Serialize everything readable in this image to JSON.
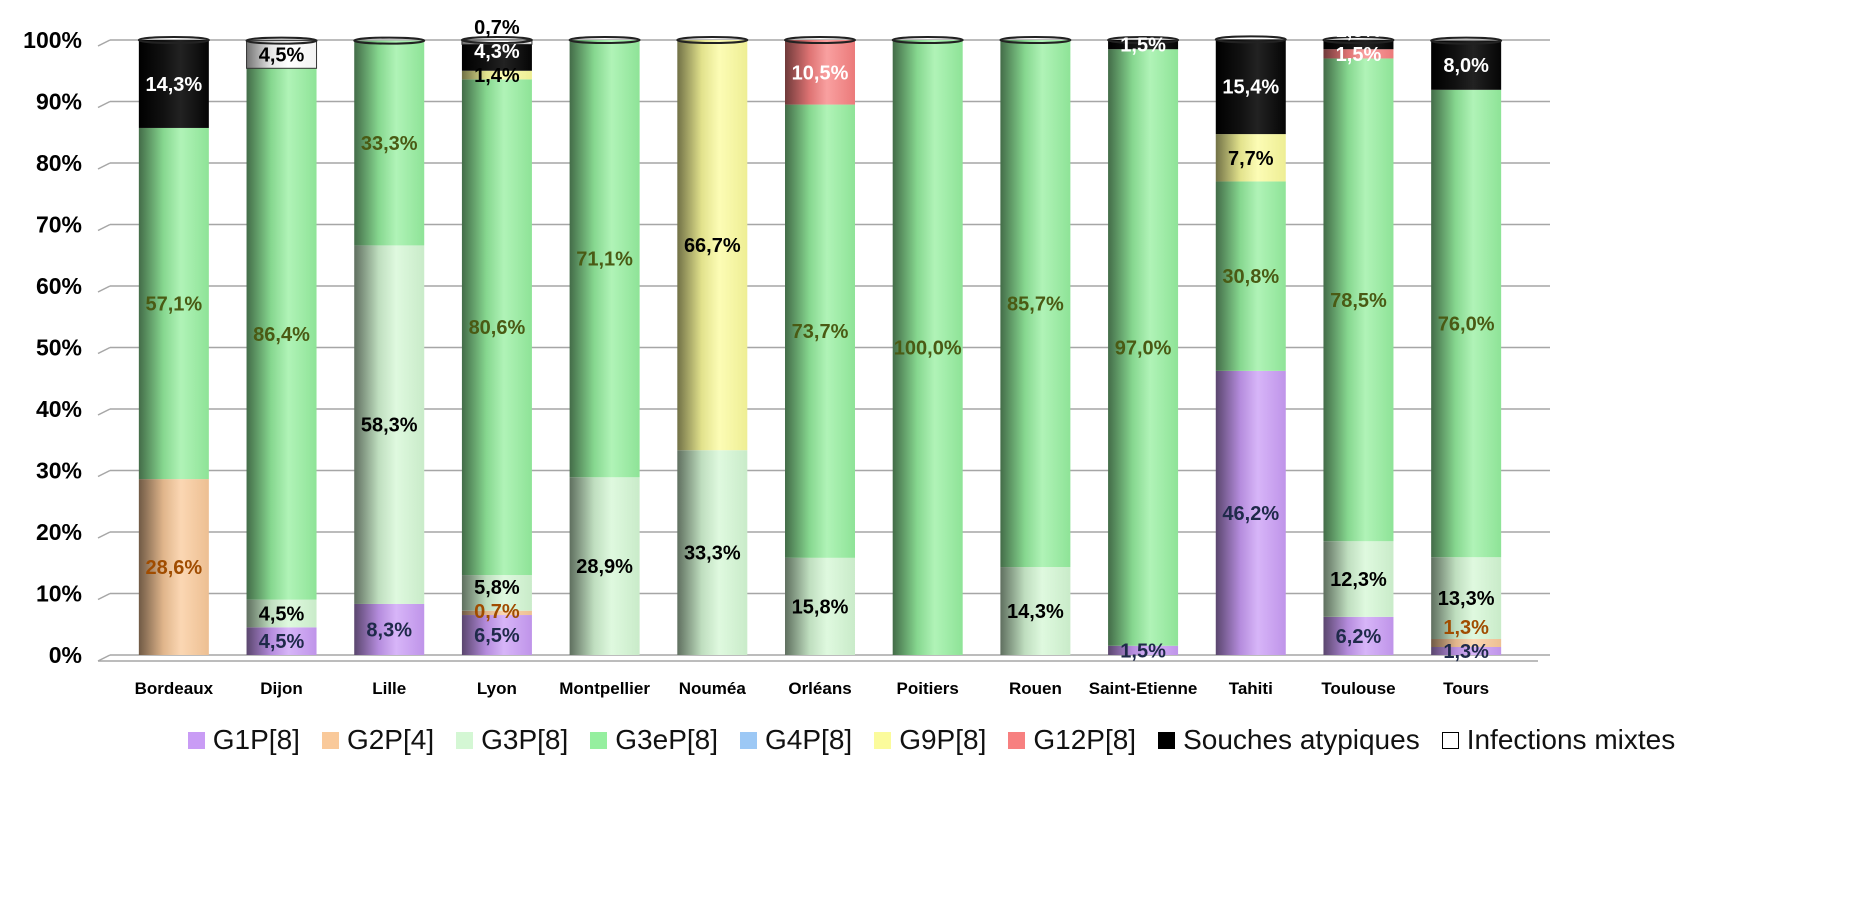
{
  "chart_data": {
    "type": "bar",
    "stacked": true,
    "percent": true,
    "ylim": [
      0,
      100
    ],
    "yticks": [
      "0%",
      "10%",
      "20%",
      "30%",
      "40%",
      "50%",
      "60%",
      "70%",
      "80%",
      "90%",
      "100%"
    ],
    "grid": true,
    "legend_position": "bottom",
    "categories": [
      "Bordeaux",
      "Dijon",
      "Lille",
      "Lyon",
      "Montpellier",
      "Nouméa",
      "Orléans",
      "Poitiers",
      "Rouen",
      "Saint-Etienne",
      "Tahiti",
      "Toulouse",
      "Tours"
    ],
    "series": [
      {
        "name": "G1P[8]",
        "color": "#c99cf5",
        "label_color": "#1f2a4a",
        "values": [
          0,
          4.5,
          8.3,
          6.5,
          0,
          0,
          0,
          0,
          0,
          1.5,
          46.2,
          6.2,
          1.3
        ]
      },
      {
        "name": "G2P[4]",
        "color": "#f9c99a",
        "label_color": "#a04c00",
        "values": [
          28.6,
          0,
          0,
          0.7,
          0,
          0,
          0,
          0,
          0,
          0,
          0,
          0,
          1.3
        ]
      },
      {
        "name": "G3P[8]",
        "color": "#d4f7d4",
        "label_color": "#000000",
        "values": [
          0,
          4.5,
          58.3,
          5.8,
          28.9,
          33.3,
          15.8,
          0,
          14.3,
          0,
          0,
          12.3,
          13.3
        ]
      },
      {
        "name": "G3eP[8]",
        "color": "#95ef9f",
        "label_color": "#4a5a14",
        "values": [
          57.1,
          86.4,
          33.3,
          80.6,
          71.1,
          0,
          73.7,
          100.0,
          85.7,
          97.0,
          30.8,
          78.5,
          76.0
        ]
      },
      {
        "name": "G4P[8]",
        "color": "#9cc8f5",
        "label_color": "#000000",
        "values": [
          0,
          0,
          0,
          0,
          0,
          0,
          0,
          0,
          0,
          0,
          0,
          0,
          0
        ]
      },
      {
        "name": "G9P[8]",
        "color": "#fbfb9c",
        "label_color": "#000000",
        "values": [
          0,
          0,
          0,
          1.4,
          0,
          66.7,
          0,
          0,
          0,
          0,
          7.7,
          0,
          0
        ]
      },
      {
        "name": "G12P[8]",
        "color": "#f78080",
        "label_color": "#ffffff",
        "values": [
          0,
          0,
          0,
          0,
          0,
          0,
          10.5,
          0,
          0,
          0,
          0,
          1.5,
          0
        ]
      },
      {
        "name": "Souches atypiques",
        "color": "#000000",
        "label_color": "#ffffff",
        "values": [
          14.3,
          0,
          0,
          4.3,
          0,
          0,
          0,
          0,
          0,
          1.5,
          15.4,
          1.5,
          8.0
        ]
      },
      {
        "name": "Infections mixtes",
        "color": "#ffffff",
        "label_color": "#000000",
        "values": [
          0,
          4.5,
          0,
          0.7,
          0,
          0,
          0,
          0,
          0,
          0,
          0,
          0,
          0
        ]
      }
    ]
  }
}
